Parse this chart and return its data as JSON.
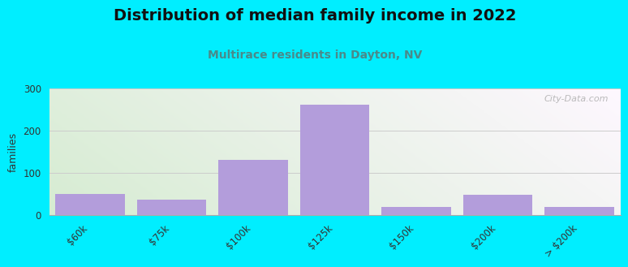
{
  "title": "Distribution of median family income in 2022",
  "subtitle": "Multirace residents in Dayton, NV",
  "categories": [
    "$60k",
    "$75k",
    "$100k",
    "$125k",
    "$150k",
    "$200k",
    "> $200k"
  ],
  "values": [
    50,
    35,
    130,
    260,
    18,
    48,
    18
  ],
  "bar_color": "#b39ddb",
  "ylabel": "families",
  "ylim": [
    0,
    300
  ],
  "yticks": [
    0,
    100,
    200,
    300
  ],
  "background_color": "#00eeff",
  "title_fontsize": 14,
  "title_color": "#111111",
  "subtitle_fontsize": 10,
  "subtitle_color": "#4a8a8a",
  "grid_color": "#cccccc",
  "watermark": "City-Data.com",
  "plot_bg_left": "#d6ecd2",
  "plot_bg_right": "#f5f5f5"
}
